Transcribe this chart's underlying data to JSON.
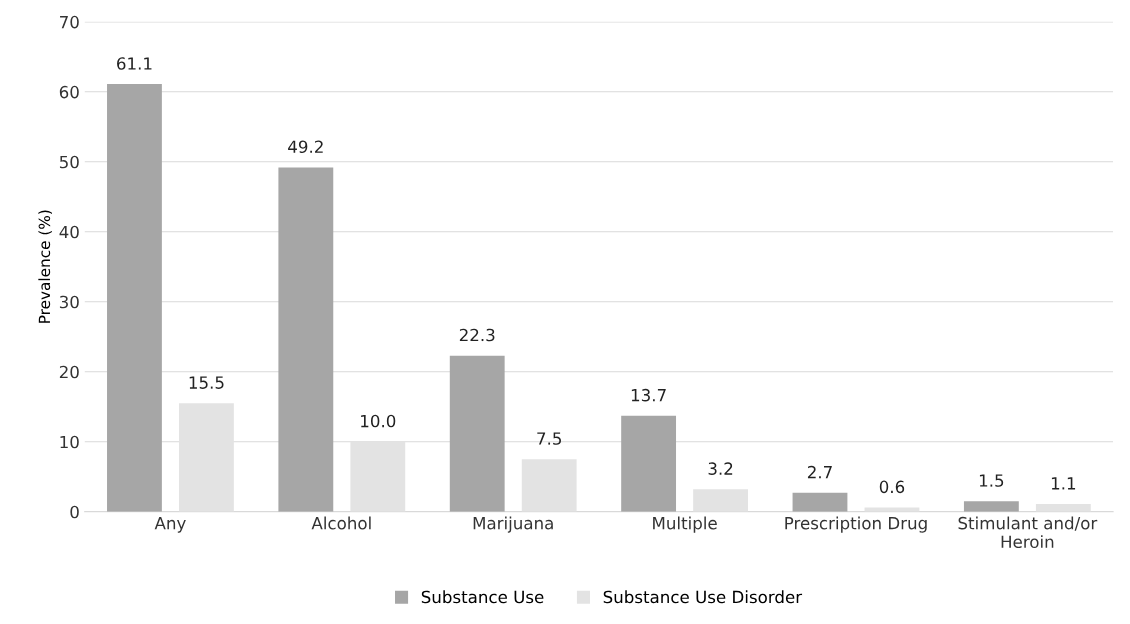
{
  "chart_data": {
    "type": "bar",
    "ylabel": "Prevalence (%)",
    "categories": [
      "Any",
      "Alcohol",
      "Marijuana",
      "Multiple",
      "Prescription Drug",
      "Stimulant and/or\nHeroin"
    ],
    "series": [
      {
        "name": "Substance Use",
        "color": "#a6a6a6",
        "values": [
          61.1,
          49.2,
          22.3,
          13.7,
          2.7,
          1.5
        ],
        "value_labels": [
          "61.1",
          "49.2",
          "22.3",
          "13.7",
          "2.7",
          "1.5"
        ]
      },
      {
        "name": "Substance Use Disorder",
        "color": "#e3e3e3",
        "values": [
          15.5,
          10.0,
          7.5,
          3.2,
          0.6,
          1.1
        ],
        "value_labels": [
          "15.5",
          "10.0",
          "7.5",
          "3.2",
          "0.6",
          "1.1"
        ]
      }
    ],
    "ylim": [
      0,
      70
    ],
    "yticks": [
      0,
      10,
      20,
      30,
      40,
      50,
      60,
      70
    ],
    "grid": "y",
    "legend": "bottom"
  }
}
